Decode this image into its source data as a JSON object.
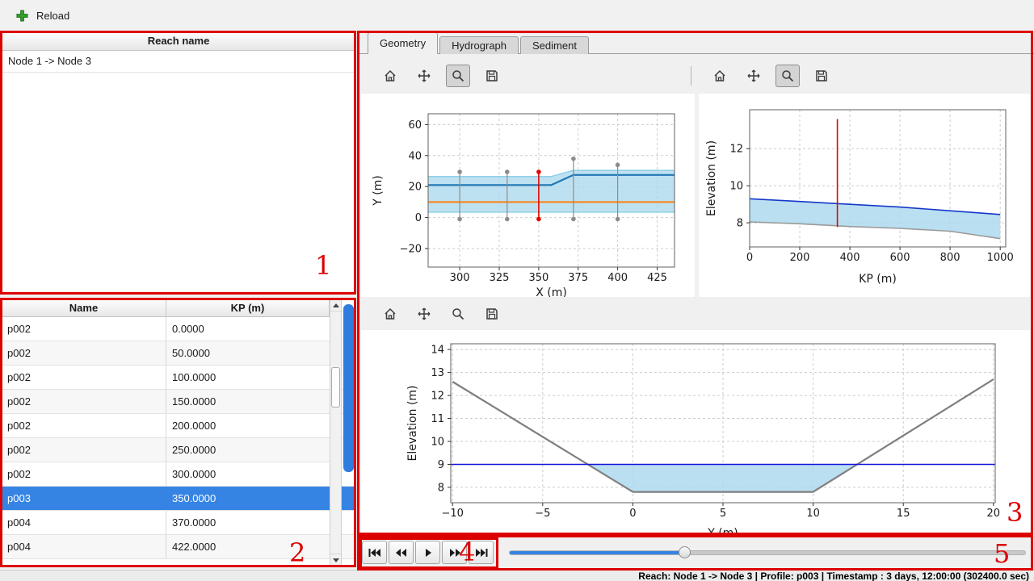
{
  "window": {
    "topbar": {
      "reload_label": "Reload"
    },
    "status_bar": "Reach: Node 1 -> Node 3 | Profile: p003 | Timestamp : 3 days, 12:00:00 (302400.0 sec)"
  },
  "reach_panel": {
    "header": "Reach name",
    "items": [
      "Node 1 -> Node 3"
    ]
  },
  "profile_table": {
    "columns": [
      "Name",
      "KP (m)"
    ],
    "rows": [
      [
        "p002",
        "0.0000"
      ],
      [
        "p002",
        "50.0000"
      ],
      [
        "p002",
        "100.0000"
      ],
      [
        "p002",
        "150.0000"
      ],
      [
        "p002",
        "200.0000"
      ],
      [
        "p002",
        "250.0000"
      ],
      [
        "p002",
        "300.0000"
      ],
      [
        "p003",
        "350.0000"
      ],
      [
        "p004",
        "370.0000"
      ],
      [
        "p004",
        "422.0000"
      ]
    ],
    "selected_row": 7,
    "selected_color": "#3584e4"
  },
  "tabs": [
    {
      "label": "Geometry",
      "active": true
    },
    {
      "label": "Hydrograph",
      "active": false
    },
    {
      "label": "Sediment",
      "active": false
    }
  ],
  "playback": {
    "slider_percent": 34
  },
  "annotations": [
    "1",
    "2",
    "3",
    "4",
    "5"
  ],
  "chart_data": [
    {
      "name": "plan-view",
      "type": "line",
      "xlabel": "X (m)",
      "ylabel": "Y (m)",
      "xlim": [
        280,
        436
      ],
      "ylim": [
        -32,
        67
      ],
      "xticks": [
        300,
        325,
        350,
        375,
        400,
        425
      ],
      "yticks": [
        -20,
        0,
        20,
        40,
        60
      ],
      "grid": true,
      "margins": {
        "l": 83,
        "t": 25,
        "r": 25,
        "b": 37
      },
      "xlabel_off": 36,
      "ylabel_x": 25,
      "fills": [
        {
          "points": [
            [
              280,
              26.5
            ],
            [
              358,
              26.5
            ],
            [
              372,
              30.5
            ],
            [
              436,
              30.5
            ],
            [
              436,
              3.5
            ],
            [
              280,
              3.5
            ]
          ],
          "color": "#aed9ee",
          "opacity": 0.8
        }
      ],
      "lines": [
        {
          "points": [
            [
              280,
              26.5
            ],
            [
              358,
              26.5
            ],
            [
              372,
              30.5
            ],
            [
              436,
              30.5
            ]
          ],
          "color": "#8fd0e8",
          "width": 1.5
        },
        {
          "points": [
            [
              280,
              3.5
            ],
            [
              436,
              3.5
            ]
          ],
          "color": "#8fd0e8",
          "width": 1.5
        },
        {
          "points": [
            [
              280,
              21
            ],
            [
              358,
              21
            ],
            [
              372,
              27.5
            ],
            [
              436,
              27.5
            ]
          ],
          "color": "#1f77b4",
          "width": 2.2
        },
        {
          "points": [
            [
              280,
              10
            ],
            [
              436,
              10
            ]
          ],
          "color": "#ff7f0e",
          "width": 2
        }
      ],
      "vlines": [
        {
          "x": 300,
          "y1": -1,
          "y2": 29.5,
          "color": "#8c8c8c",
          "width": 1.2,
          "markers": true
        },
        {
          "x": 330,
          "y1": -1,
          "y2": 29.5,
          "color": "#8c8c8c",
          "width": 1.2,
          "markers": true
        },
        {
          "x": 350,
          "y1": -1,
          "y2": 29.5,
          "color": "#e10600",
          "width": 1.6,
          "markers": true
        },
        {
          "x": 372,
          "y1": -1,
          "y2": 38,
          "color": "#8c8c8c",
          "width": 1.2,
          "markers": true
        },
        {
          "x": 400,
          "y1": -1,
          "y2": 34,
          "color": "#8c8c8c",
          "width": 1.2,
          "markers": true
        }
      ]
    },
    {
      "name": "long-profile",
      "type": "line",
      "xlabel": "KP (m)",
      "ylabel": "Elevation (m)",
      "xlim": [
        0,
        1022
      ],
      "ylim": [
        6.7,
        14.1
      ],
      "xticks": [
        0,
        200,
        400,
        600,
        800,
        1000
      ],
      "yticks": [
        8,
        10,
        12
      ],
      "grid": true,
      "margins": {
        "l": 63,
        "t": 20,
        "r": 30,
        "b": 62
      },
      "xlabel_off": 44,
      "ylabel_x": 20,
      "fills": [
        {
          "points": [
            [
              0,
              9.3
            ],
            [
              200,
              9.15
            ],
            [
              400,
              9.0
            ],
            [
              600,
              8.85
            ],
            [
              800,
              8.65
            ],
            [
              1000,
              8.45
            ],
            [
              1000,
              7.15
            ],
            [
              800,
              7.55
            ],
            [
              600,
              7.7
            ],
            [
              400,
              7.8
            ],
            [
              200,
              7.95
            ],
            [
              0,
              8.05
            ]
          ],
          "color": "#aed9ee",
          "opacity": 0.85
        }
      ],
      "lines": [
        {
          "points": [
            [
              0,
              9.3
            ],
            [
              200,
              9.15
            ],
            [
              400,
              9.0
            ],
            [
              600,
              8.85
            ],
            [
              800,
              8.65
            ],
            [
              1000,
              8.45
            ]
          ],
          "color": "#1437c8",
          "width": 1.6
        },
        {
          "points": [
            [
              0,
              8.05
            ],
            [
              200,
              7.95
            ],
            [
              400,
              7.8
            ],
            [
              600,
              7.7
            ],
            [
              800,
              7.55
            ],
            [
              1000,
              7.15
            ]
          ],
          "color": "#9a9a9a",
          "width": 1.6
        }
      ],
      "vlines": [
        {
          "x": 350,
          "y1": 7.78,
          "y2": 13.6,
          "color": "#e10600",
          "width": 1.6,
          "markers": false
        }
      ]
    },
    {
      "name": "cross-section",
      "type": "line",
      "xlabel": "Y (m)",
      "ylabel": "Elevation (m)",
      "xlim": [
        -10.1,
        20.1
      ],
      "ylim": [
        7.33,
        14.25
      ],
      "xticks": [
        -10,
        -5,
        0,
        5,
        10,
        15,
        20
      ],
      "yticks": [
        8,
        9,
        10,
        11,
        12,
        13,
        14
      ],
      "grid": true,
      "margins": {
        "l": 111,
        "t": 17,
        "r": 43,
        "b": 40
      },
      "xlabel_off": 42,
      "ylabel_x": 68,
      "fills": [
        {
          "points": [
            [
              -2.5,
              9.0
            ],
            [
              12.45,
              9.0
            ],
            [
              10,
              7.8
            ],
            [
              0,
              7.8
            ]
          ],
          "color": "#aed9ee",
          "opacity": 0.85
        }
      ],
      "lines": [
        {
          "points": [
            [
              -10,
              12.6
            ],
            [
              0,
              7.8
            ],
            [
              10,
              7.8
            ],
            [
              20,
              12.7
            ]
          ],
          "color": "#7f7f7f",
          "width": 2.2
        },
        {
          "points": [
            [
              -10.1,
              9.0
            ],
            [
              20.1,
              9.0
            ]
          ],
          "color": "#1414dc",
          "width": 1.4
        }
      ],
      "vlines": []
    }
  ]
}
